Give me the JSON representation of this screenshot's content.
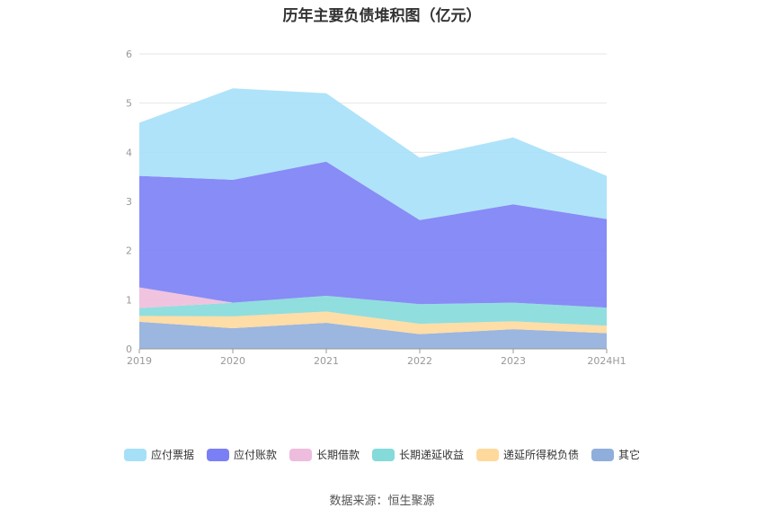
{
  "chart_data": {
    "type": "area",
    "stacked": true,
    "title": "历年主要负债堆积图（亿元）",
    "categories": [
      "2019",
      "2020",
      "2021",
      "2022",
      "2023",
      "2024H1"
    ],
    "ylim": [
      0,
      6
    ],
    "yticks": [
      "0",
      "1",
      "2",
      "3",
      "4",
      "5",
      "6"
    ],
    "grid": true,
    "legend_position": "bottom",
    "series": [
      {
        "name": "其它",
        "color": "#90aedc",
        "values": [
          0.55,
          0.42,
          0.53,
          0.3,
          0.4,
          0.32
        ]
      },
      {
        "name": "递延所得税负债",
        "color": "#ffd99c",
        "values": [
          0.12,
          0.24,
          0.23,
          0.21,
          0.16,
          0.15
        ]
      },
      {
        "name": "长期递延收益",
        "color": "#85dada",
        "values": [
          0.16,
          0.28,
          0.32,
          0.4,
          0.38,
          0.37
        ]
      },
      {
        "name": "长期借款",
        "color": "#eebcdc",
        "values": [
          0.42,
          0.0,
          0.0,
          0.0,
          0.0,
          0.0
        ]
      },
      {
        "name": "应付账款",
        "color": "#7b7ff5",
        "values": [
          2.27,
          2.5,
          2.73,
          1.71,
          2.0,
          1.8
        ]
      },
      {
        "name": "应付票据",
        "color": "#a6e0f8",
        "values": [
          1.08,
          1.86,
          1.39,
          1.27,
          1.36,
          0.88
        ]
      }
    ]
  },
  "source_text": "数据来源：恒生聚源"
}
